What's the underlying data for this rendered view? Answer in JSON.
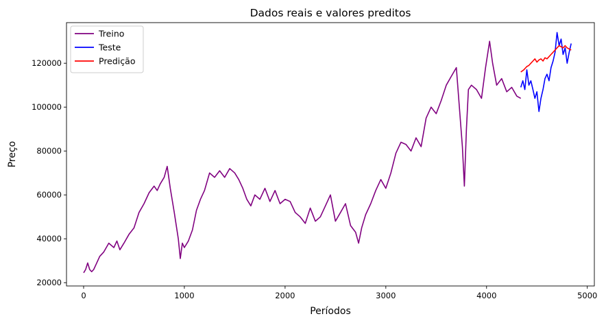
{
  "chart_data": {
    "type": "line",
    "title": "Dados reais e valores preditos",
    "xlabel": "Períodos",
    "ylabel": "Preço",
    "xlim": [
      -170,
      5070
    ],
    "ylim": [
      18500,
      138500
    ],
    "xticks": [
      0,
      1000,
      2000,
      3000,
      4000,
      5000
    ],
    "yticks": [
      20000,
      40000,
      60000,
      80000,
      100000,
      120000
    ],
    "grid": false,
    "legend_position": "top-left",
    "series": [
      {
        "name": "Treino",
        "color": "#800080",
        "x": [
          0,
          20,
          40,
          60,
          80,
          100,
          130,
          160,
          200,
          250,
          300,
          330,
          360,
          400,
          450,
          500,
          550,
          600,
          650,
          700,
          730,
          760,
          800,
          830,
          860,
          900,
          940,
          960,
          980,
          1000,
          1040,
          1080,
          1120,
          1160,
          1200,
          1250,
          1300,
          1350,
          1400,
          1450,
          1500,
          1540,
          1580,
          1620,
          1660,
          1700,
          1750,
          1800,
          1850,
          1900,
          1950,
          2000,
          2050,
          2100,
          2150,
          2200,
          2250,
          2300,
          2350,
          2400,
          2450,
          2500,
          2550,
          2600,
          2650,
          2700,
          2730,
          2760,
          2800,
          2850,
          2900,
          2950,
          3000,
          3050,
          3100,
          3150,
          3200,
          3250,
          3300,
          3350,
          3400,
          3450,
          3500,
          3550,
          3600,
          3650,
          3700,
          3730,
          3760,
          3780,
          3800,
          3820,
          3850,
          3900,
          3950,
          3990,
          4030,
          4060,
          4100,
          4150,
          4200,
          4250,
          4300,
          4340
        ],
        "values": [
          24500,
          26000,
          29000,
          26000,
          25000,
          26000,
          29000,
          32000,
          34000,
          38000,
          36000,
          39000,
          35000,
          38000,
          42000,
          45000,
          52000,
          56000,
          61000,
          64000,
          62000,
          65000,
          68000,
          73000,
          63000,
          52000,
          40000,
          31000,
          38000,
          36000,
          39000,
          44000,
          53000,
          58000,
          62000,
          70000,
          68000,
          71000,
          68000,
          72000,
          70000,
          67000,
          63000,
          58000,
          55000,
          60000,
          58000,
          63000,
          57000,
          62000,
          56000,
          58000,
          57000,
          52000,
          50000,
          47000,
          54000,
          48000,
          50000,
          55000,
          60000,
          48000,
          52000,
          56000,
          46000,
          43000,
          38000,
          45000,
          51000,
          56000,
          62000,
          67000,
          63000,
          70000,
          79000,
          84000,
          83000,
          80000,
          86000,
          82000,
          95000,
          100000,
          97000,
          103000,
          110000,
          114000,
          118000,
          100000,
          82000,
          64000,
          90000,
          108000,
          110000,
          108000,
          104000,
          118000,
          130000,
          120000,
          110000,
          113000,
          107000,
          109000,
          105000,
          104000
        ]
      },
      {
        "name": "Teste",
        "color": "#0000ff",
        "x": [
          4340,
          4360,
          4380,
          4400,
          4420,
          4440,
          4460,
          4480,
          4500,
          4520,
          4540,
          4560,
          4580,
          4600,
          4620,
          4640,
          4660,
          4680,
          4700,
          4720,
          4740,
          4760,
          4780,
          4800,
          4820,
          4840
        ],
        "values": [
          109000,
          112000,
          108000,
          117000,
          110000,
          112000,
          108000,
          104000,
          107000,
          98000,
          104000,
          108000,
          113000,
          115000,
          112000,
          118000,
          121000,
          125000,
          134000,
          128000,
          131000,
          124000,
          127000,
          120000,
          125000,
          129000
        ]
      },
      {
        "name": "Predição",
        "color": "#ff0000",
        "x": [
          4340,
          4370,
          4400,
          4420,
          4440,
          4460,
          4480,
          4500,
          4520,
          4540,
          4560,
          4580,
          4600,
          4620,
          4640,
          4660,
          4680,
          4700,
          4720,
          4740,
          4760,
          4780,
          4800,
          4820,
          4840
        ],
        "values": [
          116000,
          117000,
          118500,
          119000,
          120000,
          121000,
          122000,
          120500,
          121500,
          122000,
          121000,
          122500,
          122000,
          123000,
          124000,
          125000,
          126000,
          127000,
          128000,
          127500,
          127000,
          128000,
          127000,
          126500,
          126000
        ]
      }
    ]
  }
}
